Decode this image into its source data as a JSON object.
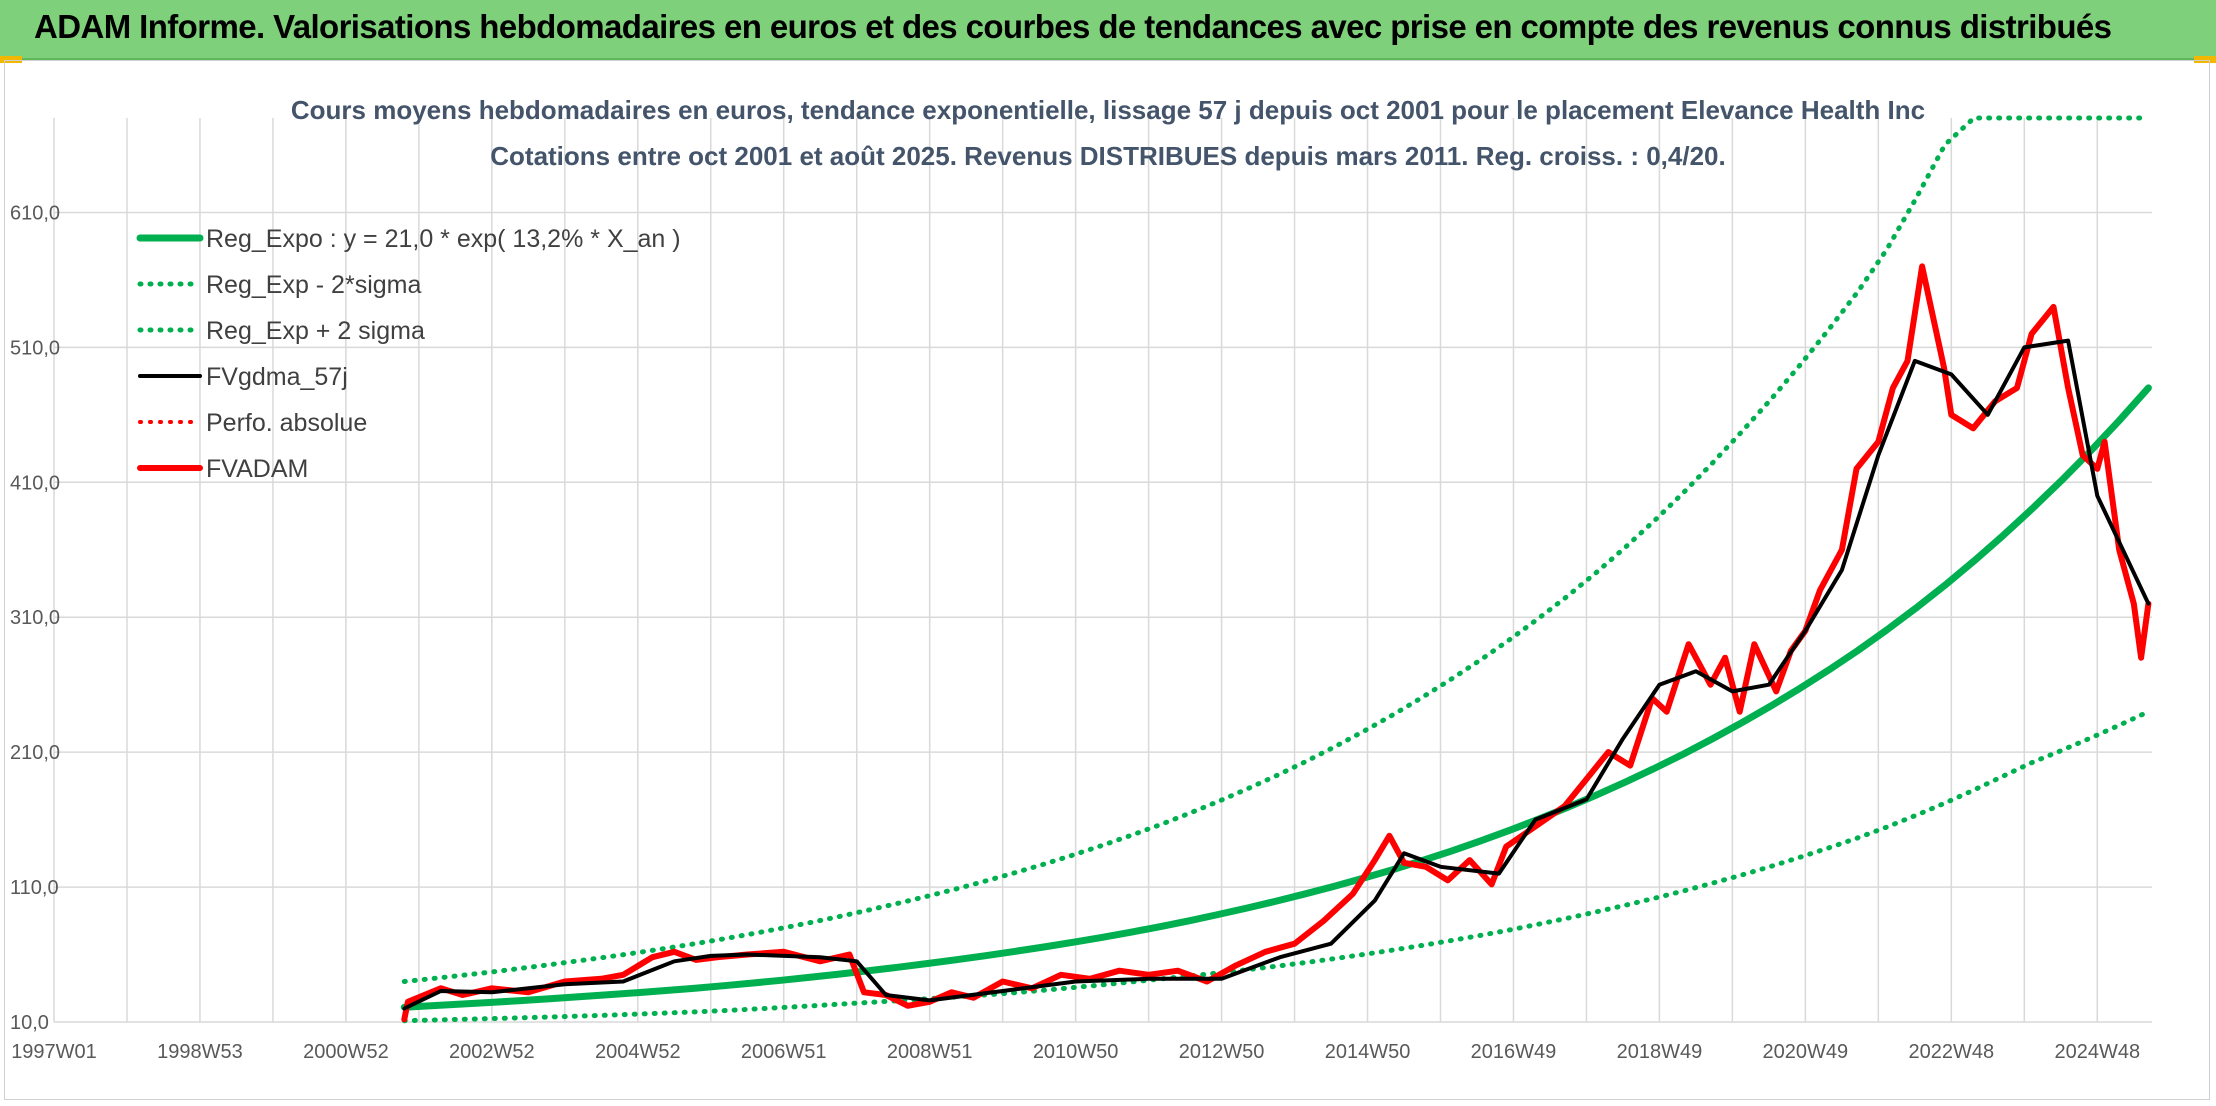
{
  "header": {
    "title": "ADAM Informe. Valorisations hebdomadaires en euros et des courbes de tendances avec prise en compte des revenus connus distribués",
    "background": "#7ed07a"
  },
  "colors": {
    "trend": "#00b050",
    "band": "#00b050",
    "fvgdma": "#000000",
    "fvadam": "#ff0000",
    "grid": "#d9d9d9"
  },
  "chart_data": {
    "type": "line",
    "title_line1": "Cours moyens hebdomadaires en euros, tendance exponentielle, lissage 57 j depuis oct 2001 pour le placement Elevance Health Inc",
    "title_line2": "Cotations entre oct 2001 et août 2025. Revenus DISTRIBUES depuis mars 2011. Reg. croiss. : 0,4/20.",
    "x_range": [
      1997.0,
      2025.75
    ],
    "ylim": [
      10,
      680
    ],
    "y_ticks": [
      10,
      110,
      210,
      310,
      410,
      510,
      610
    ],
    "y_tick_labels": [
      "10,0",
      "110,0",
      "210,0",
      "310,0",
      "410,0",
      "510,0",
      "610,0"
    ],
    "x_ticks": [
      {
        "label": "1997W01",
        "x": 1997.0
      },
      {
        "label": "1998W53",
        "x": 1999.0
      },
      {
        "label": "2000W52",
        "x": 2001.0
      },
      {
        "label": "2002W52",
        "x": 2003.0
      },
      {
        "label": "2004W52",
        "x": 2005.0
      },
      {
        "label": "2006W51",
        "x": 2007.0
      },
      {
        "label": "2008W51",
        "x": 2009.0
      },
      {
        "label": "2010W50",
        "x": 2011.0
      },
      {
        "label": "2012W50",
        "x": 2013.0
      },
      {
        "label": "2014W50",
        "x": 2015.0
      },
      {
        "label": "2016W49",
        "x": 2017.0
      },
      {
        "label": "2018W49",
        "x": 2019.0
      },
      {
        "label": "2020W49",
        "x": 2021.0
      },
      {
        "label": "2022W48",
        "x": 2023.0
      },
      {
        "label": "2024W48",
        "x": 2025.0
      }
    ],
    "grid": true,
    "legend_position": "top-left",
    "legend": [
      {
        "label": "Reg_Expo : y = 21,0 * exp( 13,2% *  X_an )",
        "color": "#00b050",
        "style": "solid",
        "width": 7
      },
      {
        "label": "Reg_Exp - 2*sigma",
        "color": "#00b050",
        "style": "dotted",
        "width": 5
      },
      {
        "label": "Reg_Exp + 2 sigma",
        "color": "#00b050",
        "style": "dotted",
        "width": 5
      },
      {
        "label": "FVgdma_57j",
        "color": "#000000",
        "style": "solid",
        "width": 4
      },
      {
        "label": "Perfo. absolue",
        "color": "#ff0000",
        "style": "dotted",
        "width": 4
      },
      {
        "label": "FVADAM",
        "color": "#ff0000",
        "style": "solid",
        "width": 6
      }
    ],
    "series": [
      {
        "name": "Reg_Expo : y = 21,0 * exp( 13,2% *  X_an )",
        "x": [
          2001.8,
          2004,
          2006,
          2008,
          2010,
          2012,
          2014,
          2016,
          2018,
          2020,
          2022,
          2024,
          2025.7
        ],
        "y": [
          21,
          28,
          36,
          47,
          61,
          79,
          103,
          134,
          175,
          228,
          296,
          385,
          480
        ]
      },
      {
        "name": "Reg_Exp + 2 sigma",
        "x": [
          2001.8,
          2004,
          2006,
          2008,
          2010,
          2012,
          2014,
          2016,
          2018,
          2020,
          2022,
          2023.1,
          2025.7
        ],
        "y": [
          40,
          54,
          70,
          91,
          118,
          153,
          199,
          259,
          337,
          440,
          572,
          680,
          680
        ]
      },
      {
        "name": "Reg_Exp - 2*sigma",
        "x": [
          2001.8,
          2004,
          2006,
          2008,
          2010,
          2012,
          2014,
          2016,
          2018,
          2020,
          2022,
          2024,
          2025.7
        ],
        "y": [
          11,
          14,
          18,
          24,
          31,
          41,
          53,
          69,
          90,
          117,
          152,
          200,
          240
        ]
      },
      {
        "name": "FVgdma_57j",
        "x": [
          2001.8,
          2002.3,
          2003,
          2004,
          2004.8,
          2005.5,
          2006,
          2006.5,
          2007.5,
          2008.0,
          2008.4,
          2009.0,
          2010.0,
          2011.0,
          2012.0,
          2013.0,
          2013.8,
          2014.5,
          2015.1,
          2015.5,
          2016.0,
          2016.8,
          2017.3,
          2018.0,
          2018.5,
          2019.0,
          2019.5,
          2020.0,
          2020.5,
          2021.0,
          2021.5,
          2022.0,
          2022.5,
          2023.0,
          2023.5,
          2024.0,
          2024.6,
          2025.0,
          2025.7
        ],
        "y": [
          20,
          33,
          32,
          38,
          40,
          55,
          59,
          60,
          58,
          55,
          30,
          26,
          33,
          40,
          42,
          42,
          58,
          68,
          100,
          135,
          125,
          120,
          160,
          175,
          220,
          260,
          270,
          255,
          260,
          300,
          345,
          430,
          500,
          490,
          460,
          510,
          515,
          400,
          320
        ]
      },
      {
        "name": "FVADAM",
        "x": [
          2001.8,
          2001.85,
          2002.3,
          2002.6,
          2003.0,
          2003.5,
          2004.0,
          2004.5,
          2004.8,
          2005.2,
          2005.5,
          2005.8,
          2006.1,
          2006.5,
          2007.0,
          2007.5,
          2007.9,
          2008.1,
          2008.4,
          2008.7,
          2009.0,
          2009.3,
          2009.6,
          2010.0,
          2010.4,
          2010.8,
          2011.2,
          2011.6,
          2012.0,
          2012.4,
          2012.8,
          2013.2,
          2013.6,
          2014.0,
          2014.4,
          2014.8,
          2015.1,
          2015.3,
          2015.5,
          2015.8,
          2016.1,
          2016.4,
          2016.7,
          2016.9,
          2017.3,
          2017.7,
          2018.0,
          2018.3,
          2018.6,
          2018.9,
          2019.1,
          2019.4,
          2019.7,
          2019.9,
          2020.1,
          2020.3,
          2020.6,
          2020.8,
          2021.0,
          2021.2,
          2021.5,
          2021.7,
          2022.0,
          2022.2,
          2022.4,
          2022.6,
          2022.9,
          2023.0,
          2023.3,
          2023.6,
          2023.9,
          2024.1,
          2024.4,
          2024.6,
          2024.8,
          2025.0,
          2025.1,
          2025.3,
          2025.5,
          2025.6,
          2025.7
        ],
        "y": [
          12,
          25,
          35,
          30,
          35,
          32,
          40,
          42,
          45,
          58,
          62,
          56,
          58,
          60,
          62,
          55,
          60,
          32,
          30,
          22,
          25,
          32,
          28,
          40,
          35,
          45,
          42,
          48,
          45,
          48,
          40,
          52,
          62,
          68,
          85,
          105,
          130,
          148,
          128,
          125,
          115,
          130,
          112,
          140,
          155,
          170,
          190,
          210,
          200,
          250,
          240,
          290,
          260,
          280,
          240,
          290,
          255,
          285,
          300,
          330,
          360,
          420,
          440,
          480,
          500,
          570,
          495,
          460,
          450,
          470,
          480,
          520,
          540,
          480,
          430,
          420,
          440,
          360,
          320,
          280,
          320
        ]
      }
    ]
  }
}
